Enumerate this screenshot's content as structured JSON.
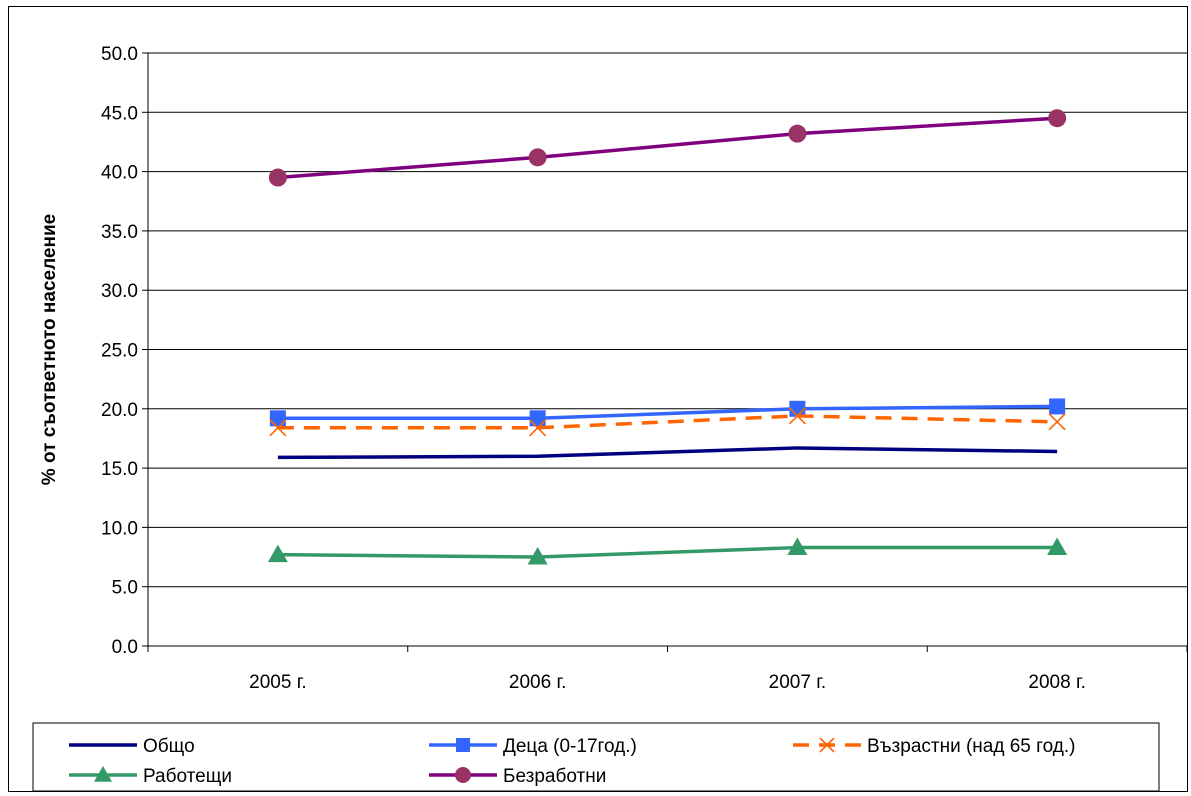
{
  "chart_data": {
    "type": "line",
    "title": "",
    "xlabel": "",
    "ylabel": "% от съответното население",
    "categories": [
      "2005 г.",
      "2006 г.",
      "2007 г.",
      "2008 г."
    ],
    "ylim": [
      0,
      50
    ],
    "yticks": [
      "0.0",
      "5.0",
      "10.0",
      "15.0",
      "20.0",
      "25.0",
      "30.0",
      "35.0",
      "40.0",
      "45.0",
      "50.0"
    ],
    "grid": true,
    "legend_position": "bottom",
    "series": [
      {
        "name": "Общо",
        "values": [
          15.9,
          16.0,
          16.7,
          16.4
        ],
        "color": "#000080",
        "marker": "none",
        "dash": "solid"
      },
      {
        "name": "Деца (0-17год.)",
        "values": [
          19.2,
          19.2,
          20.0,
          20.2
        ],
        "color": "#3366FF",
        "marker": "square",
        "dash": "solid"
      },
      {
        "name": "Възрастни (над 65 год.)",
        "values": [
          18.4,
          18.4,
          19.4,
          18.9
        ],
        "color": "#FF6600",
        "marker": "x",
        "dash": "dashed"
      },
      {
        "name": "Работещи",
        "values": [
          7.7,
          7.5,
          8.3,
          8.3
        ],
        "color": "#339966",
        "marker": "triangle",
        "dash": "solid"
      },
      {
        "name": "Безработни",
        "values": [
          39.5,
          41.2,
          43.2,
          44.5
        ],
        "color": "#800080",
        "marker": "circle",
        "dash": "solid",
        "marker_color": "#993366"
      }
    ]
  }
}
